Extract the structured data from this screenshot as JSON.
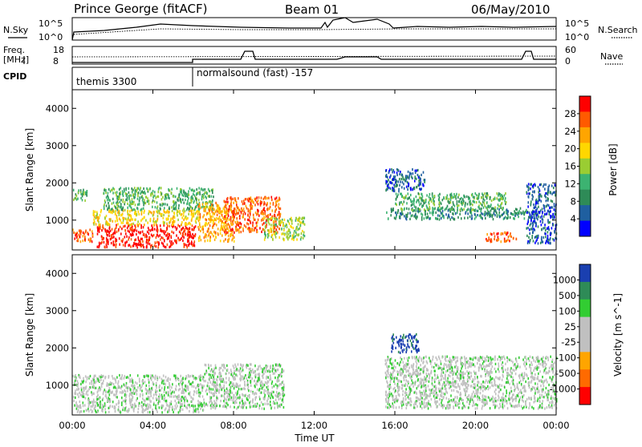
{
  "header": {
    "station": "Prince George (fitACF)",
    "beam": "Beam 01",
    "date": "06/May/2010"
  },
  "noise_panel": {
    "left_label": "N.Sky",
    "right_label": "N.Search",
    "left_ticks": [
      "10^5",
      "10^0"
    ],
    "right_ticks": [
      "10^5",
      "10^0"
    ]
  },
  "freq_panel": {
    "left_label_1": "Freq.",
    "left_label_2": "[MHz]",
    "right_label": "Nave",
    "left_ticks": [
      "18",
      "8"
    ],
    "right_ticks": [
      "60",
      "0"
    ]
  },
  "cpid_panel": {
    "label": "CPID",
    "segments": [
      {
        "start_hour": 0.0,
        "text": "themis 3300"
      },
      {
        "start_hour": 6.0,
        "text": "normalsound (fast) -157"
      }
    ]
  },
  "x_axis": {
    "label": "Time UT",
    "ticks": [
      "00:00",
      "04:00",
      "08:00",
      "12:00",
      "16:00",
      "20:00",
      "00:00"
    ]
  },
  "chart_data": [
    {
      "type": "heatmap",
      "name": "Power",
      "ylabel": "Slant Range [km]",
      "ylim": [
        200,
        4500
      ],
      "xlim_hours": [
        0,
        24
      ],
      "yticks": [
        "1000",
        "2000",
        "3000",
        "4000"
      ],
      "colorbar": {
        "label": "Power [dB]",
        "ticks": [
          "28",
          "24",
          "20",
          "16",
          "12",
          "8",
          "4"
        ],
        "colors": [
          "#ff0000",
          "#ff5a00",
          "#ffa500",
          "#ffd700",
          "#9acd32",
          "#3cb371",
          "#2e8b57",
          "#1f5fa0",
          "#0000ff"
        ]
      },
      "bands": [
        {
          "t0": 0.0,
          "t1": 1.0,
          "r0": 450,
          "r1": 800,
          "c": 1
        },
        {
          "t0": 0.0,
          "t1": 0.8,
          "r0": 1550,
          "r1": 1850,
          "c": 5
        },
        {
          "t0": 1.2,
          "t1": 6.1,
          "r0": 300,
          "r1": 900,
          "c": 0
        },
        {
          "t0": 1.0,
          "t1": 6.3,
          "r0": 900,
          "r1": 1300,
          "c": 3
        },
        {
          "t0": 1.5,
          "t1": 7.0,
          "r0": 1300,
          "r1": 1900,
          "c": 5
        },
        {
          "t0": 6.2,
          "t1": 8.0,
          "r0": 450,
          "r1": 1500,
          "c": 2
        },
        {
          "t0": 7.5,
          "t1": 10.3,
          "r0": 700,
          "r1": 1650,
          "c": 1
        },
        {
          "t0": 9.5,
          "t1": 11.5,
          "r0": 500,
          "r1": 1100,
          "c": 4
        },
        {
          "t0": 15.5,
          "t1": 22.5,
          "r0": 1050,
          "r1": 1350,
          "c": 6
        },
        {
          "t0": 16.0,
          "t1": 21.5,
          "r0": 1300,
          "r1": 1750,
          "c": 5
        },
        {
          "t0": 15.5,
          "t1": 17.5,
          "r0": 1800,
          "r1": 2400,
          "c": 7
        },
        {
          "t0": 20.5,
          "t1": 22.0,
          "r0": 450,
          "r1": 700,
          "c": 1
        },
        {
          "t0": 22.5,
          "t1": 24.0,
          "r0": 400,
          "r1": 2000,
          "c": 7
        }
      ]
    },
    {
      "type": "heatmap",
      "name": "Velocity",
      "ylabel": "Slant Range [km]",
      "ylim": [
        200,
        4500
      ],
      "xlim_hours": [
        0,
        24
      ],
      "yticks": [
        "1000",
        "2000",
        "3000",
        "4000"
      ],
      "colorbar": {
        "label": "Velocity [m s^-1]",
        "ticks": [
          "1000",
          "500",
          "100",
          "25",
          "-25",
          "-100",
          "-500",
          "-1000"
        ],
        "colors": [
          "#1a3fb0",
          "#2e8b57",
          "#32cd32",
          "#c0c0c0",
          "#c0c0c0",
          "#ffa500",
          "#ff6a00",
          "#ff0000"
        ]
      },
      "bands": [
        {
          "t0": 0.0,
          "t1": 6.5,
          "r0": 300,
          "r1": 1300,
          "c": 3
        },
        {
          "t0": 6.5,
          "t1": 10.5,
          "r0": 400,
          "r1": 1600,
          "c": 3
        },
        {
          "t0": 15.5,
          "t1": 24.0,
          "r0": 400,
          "r1": 1800,
          "c": 3
        },
        {
          "t0": 15.8,
          "t1": 17.2,
          "r0": 1900,
          "r1": 2400,
          "c": 0
        }
      ]
    }
  ]
}
